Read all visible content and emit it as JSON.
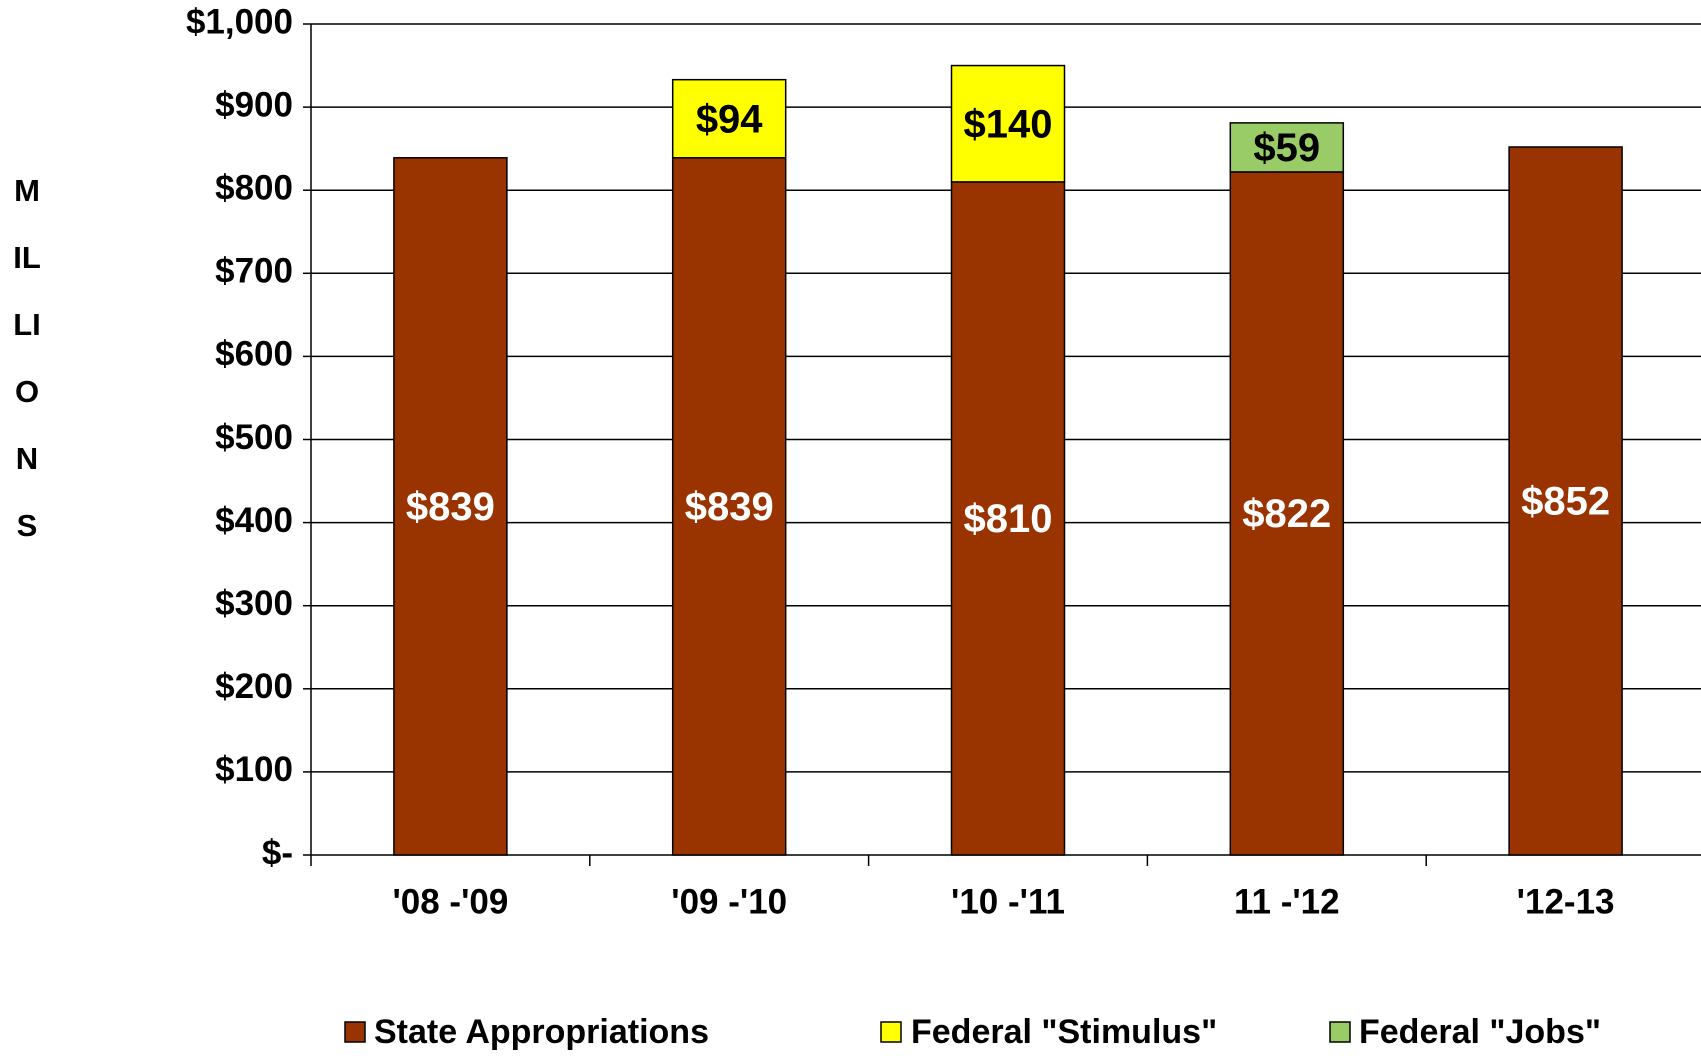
{
  "chart_data": {
    "type": "stacked_bar",
    "y_label": "MILLIONS",
    "categories": [
      "'08 -'09",
      "'09 -'10",
      "'10 -'11",
      "11 -'12",
      "'12-13"
    ],
    "series": [
      {
        "name": "State Appropriations",
        "color": "#993300",
        "values": [
          839,
          839,
          810,
          822,
          852
        ],
        "value_labels": [
          "$839",
          "$839",
          "$810",
          "$822",
          "$852"
        ],
        "label_color": "#ffffff"
      },
      {
        "name": "Federal \"Stimulus\"",
        "color": "#ffff00",
        "values": [
          null,
          94,
          140,
          null,
          null
        ],
        "value_labels": [
          null,
          "$94",
          "$140",
          null,
          null
        ],
        "label_color": "#000000"
      },
      {
        "name": "Federal \"Jobs\"",
        "color": "#99cc66",
        "values": [
          null,
          null,
          null,
          59,
          null
        ],
        "value_labels": [
          null,
          null,
          null,
          "$59",
          null
        ],
        "label_color": "#000000"
      }
    ],
    "ylim": [
      0,
      1000
    ],
    "yticks": [
      {
        "value": 0,
        "label": "$-"
      },
      {
        "value": 100,
        "label": "$100"
      },
      {
        "value": 200,
        "label": "$200"
      },
      {
        "value": 300,
        "label": "$300"
      },
      {
        "value": 400,
        "label": "$400"
      },
      {
        "value": 500,
        "label": "$500"
      },
      {
        "value": 600,
        "label": "$600"
      },
      {
        "value": 700,
        "label": "$700"
      },
      {
        "value": 800,
        "label": "$800"
      },
      {
        "value": 900,
        "label": "$900"
      },
      {
        "value": 1000,
        "label": "$1,000"
      }
    ],
    "grid": true,
    "legend": "bottom"
  }
}
